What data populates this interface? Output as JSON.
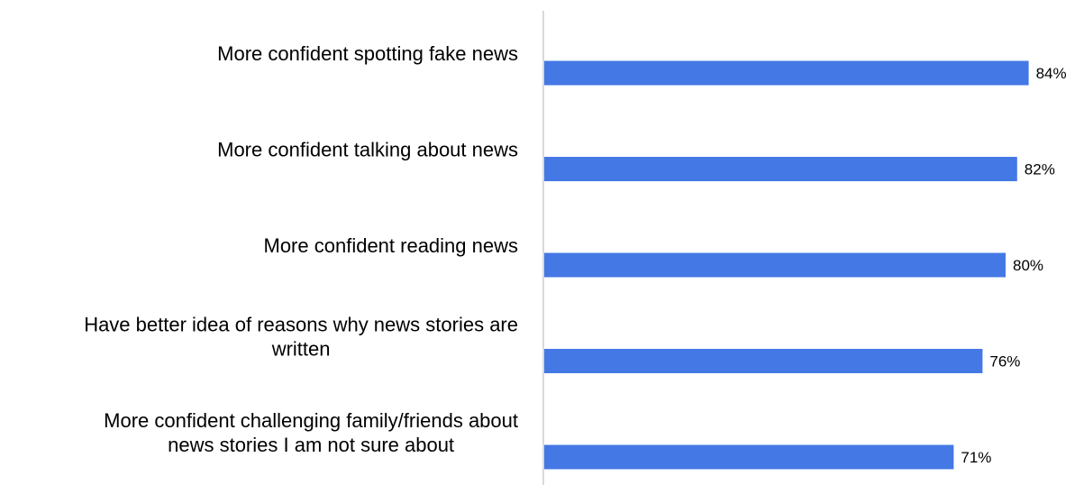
{
  "chart_data": {
    "type": "bar",
    "orientation": "horizontal",
    "categories": [
      [
        "More confident spotting fake news"
      ],
      [
        "More confident talking about news"
      ],
      [
        "More confident reading news"
      ],
      [
        "Have better idea of reasons why news stories are",
        "written"
      ],
      [
        "More confident challenging family/friends about",
        "news stories I am not sure about"
      ]
    ],
    "values": [
      84,
      82,
      80,
      76,
      71
    ],
    "value_labels": [
      "84%",
      "82%",
      "80%",
      "76%",
      "71%"
    ],
    "xlim": [
      0,
      100
    ],
    "grid": false,
    "legend": "none",
    "bar_color": "#4478E4",
    "axis_color": "#D9D9D9"
  }
}
